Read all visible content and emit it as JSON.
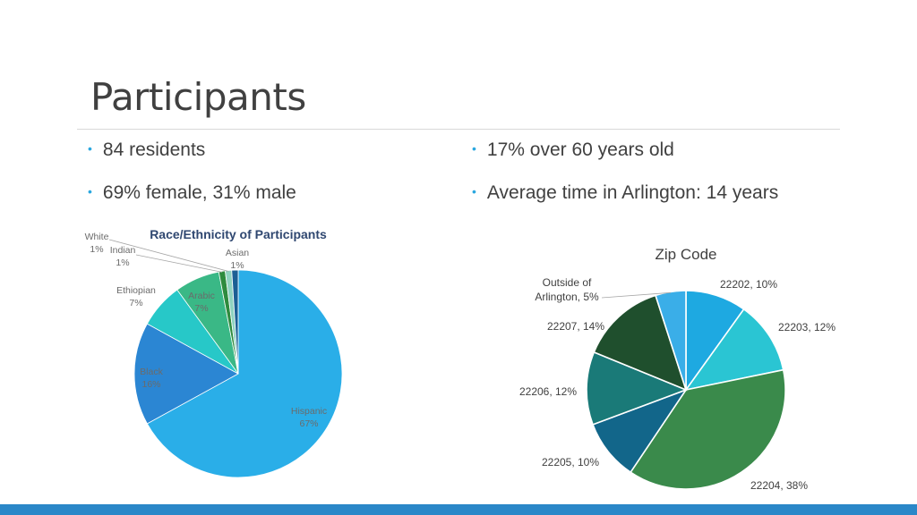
{
  "slide": {
    "title": "Participants",
    "bullets": [
      "84 residents",
      "69% female, 31% male",
      "17% over 60 years old",
      "Average time in Arlington: 14 years"
    ],
    "bullet_symbol": "•",
    "accent_color": "#2aa7df",
    "bar_color": "#2a87c8"
  },
  "chart_data": [
    {
      "type": "pie",
      "title": "Race/Ethnicity of Participants",
      "slices": [
        {
          "name": "Hispanic",
          "value": 67,
          "label": "67%",
          "color": "#2aaee8"
        },
        {
          "name": "Black",
          "value": 16,
          "label": "16%",
          "color": "#2b86d3"
        },
        {
          "name": "Ethiopian",
          "value": 7,
          "label": "7%",
          "color": "#27c8c8"
        },
        {
          "name": "Arabic",
          "value": 7,
          "label": "7%",
          "color": "#3ab886"
        },
        {
          "name": "Indian",
          "value": 1,
          "label": "1%",
          "color": "#2e8b3e"
        },
        {
          "name": "White",
          "value": 1,
          "label": "1%",
          "color": "#8fd3c0"
        },
        {
          "name": "Asian",
          "value": 1,
          "label": "1%",
          "color": "#1c5f94"
        }
      ]
    },
    {
      "type": "pie",
      "title": "Zip Code",
      "slices": [
        {
          "name": "22202",
          "value": 10,
          "label": "22202, 10%",
          "color": "#1ea9e1"
        },
        {
          "name": "22203",
          "value": 12,
          "label": "22203, 12%",
          "color": "#2ac5d3"
        },
        {
          "name": "22204",
          "value": 38,
          "label": "22204, 38%",
          "color": "#3a8a4b"
        },
        {
          "name": "22205",
          "value": 10,
          "label": "22205, 10%",
          "color": "#12668a"
        },
        {
          "name": "22206",
          "value": 12,
          "label": "22206, 12%",
          "color": "#1a7a78"
        },
        {
          "name": "22207",
          "value": 14,
          "label": "22207, 14%",
          "color": "#1f4f2d"
        },
        {
          "name": "Outside of Arlington",
          "value": 5,
          "label": "Outside of Arlington, 5%",
          "label_lines": [
            "Outside of",
            "Arlington, 5%"
          ],
          "color": "#3aaee8"
        }
      ]
    }
  ]
}
